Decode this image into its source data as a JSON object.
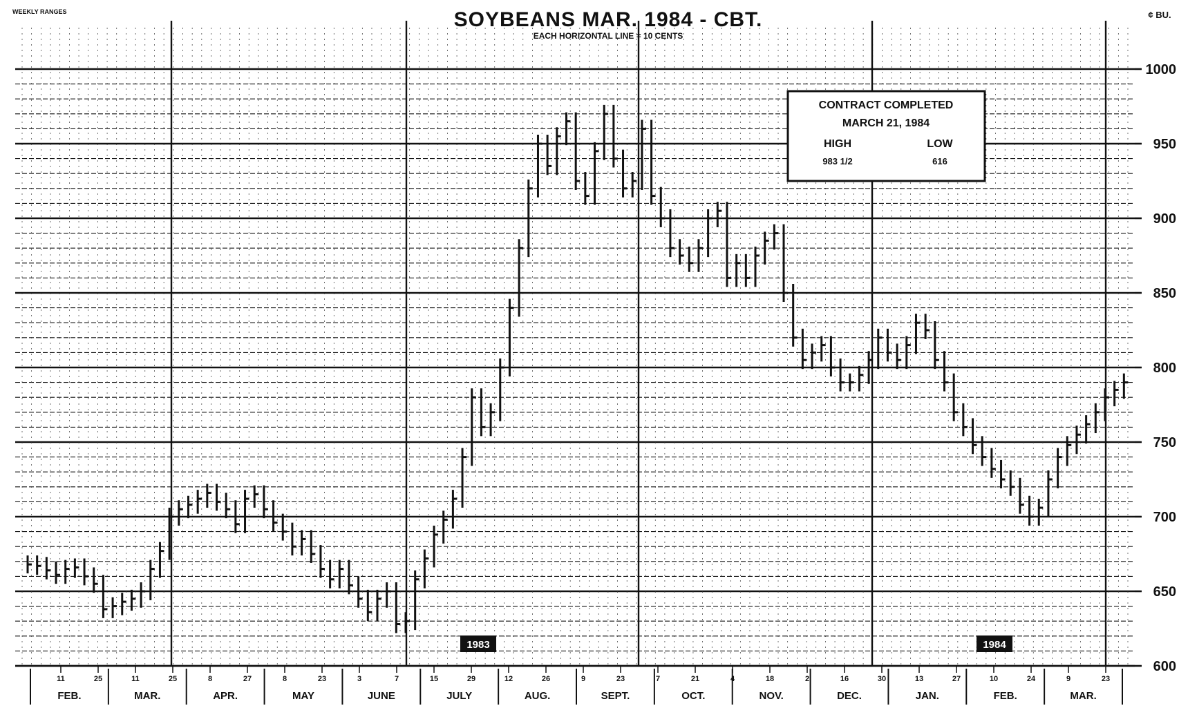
{
  "chart_data": {
    "type": "bar",
    "title": "SOYBEANS MAR. 1984 - CBT.",
    "subtitle": "EACH HORIZONTAL LINE = 10 CENTS",
    "corner_left": "WEEKLY RANGES",
    "y_unit": "¢ BU.",
    "ylim": [
      600,
      1000
    ],
    "y_ticks": [
      "1000",
      "950",
      "900",
      "850",
      "800",
      "750",
      "700",
      "650",
      "600"
    ],
    "grid": true,
    "x_day_labels": [
      "11",
      "25",
      "11",
      "25",
      "8",
      "27",
      "8",
      "23",
      "3",
      "7",
      "15",
      "29",
      "12",
      "26",
      "9",
      "23",
      "7",
      "21",
      "4",
      "18",
      "2",
      "16",
      "30",
      "13",
      "27",
      "10",
      "24",
      "9",
      "23"
    ],
    "x_month_labels": [
      "FEB.",
      "MAR.",
      "APR.",
      "MAY",
      "JUNE",
      "JULY",
      "AUG.",
      "SEPT.",
      "OCT.",
      "NOV.",
      "DEC.",
      "JAN.",
      "FEB.",
      "MAR."
    ],
    "year_labels": [
      "1983",
      "1984"
    ],
    "annotation": {
      "line1": "CONTRACT COMPLETED",
      "line2": "MARCH 21, 1984",
      "high_label": "HIGH",
      "low_label": "LOW",
      "high_value": "983 1/2",
      "low_value": "616"
    },
    "series": [
      {
        "values": [
          668,
          667,
          664,
          661,
          665,
          666,
          660,
          655,
          638,
          640,
          643,
          645,
          650,
          665,
          677,
          700,
          705,
          708,
          712,
          716,
          710,
          705,
          695,
          712,
          715,
          705,
          696,
          690,
          680,
          685,
          675,
          665,
          658,
          665,
          654,
          645,
          636,
          645,
          650,
          628,
          630,
          658,
          672,
          688,
          698,
          712,
          740,
          780,
          760,
          770,
          800,
          840,
          880,
          920,
          950,
          935,
          955,
          965,
          925,
          915,
          945,
          970,
          940,
          920,
          925,
          960,
          915,
          900,
          880,
          875,
          870,
          880,
          900,
          905,
          860,
          870,
          860,
          875,
          885,
          890,
          850,
          820,
          805,
          810,
          815,
          800,
          790,
          790,
          795,
          805,
          820,
          810,
          805,
          815,
          830,
          825,
          805,
          790,
          770,
          760,
          748,
          740,
          732,
          725,
          720,
          708,
          700,
          706,
          725,
          740,
          748,
          755,
          762,
          770,
          780,
          785,
          790
        ]
      }
    ]
  }
}
